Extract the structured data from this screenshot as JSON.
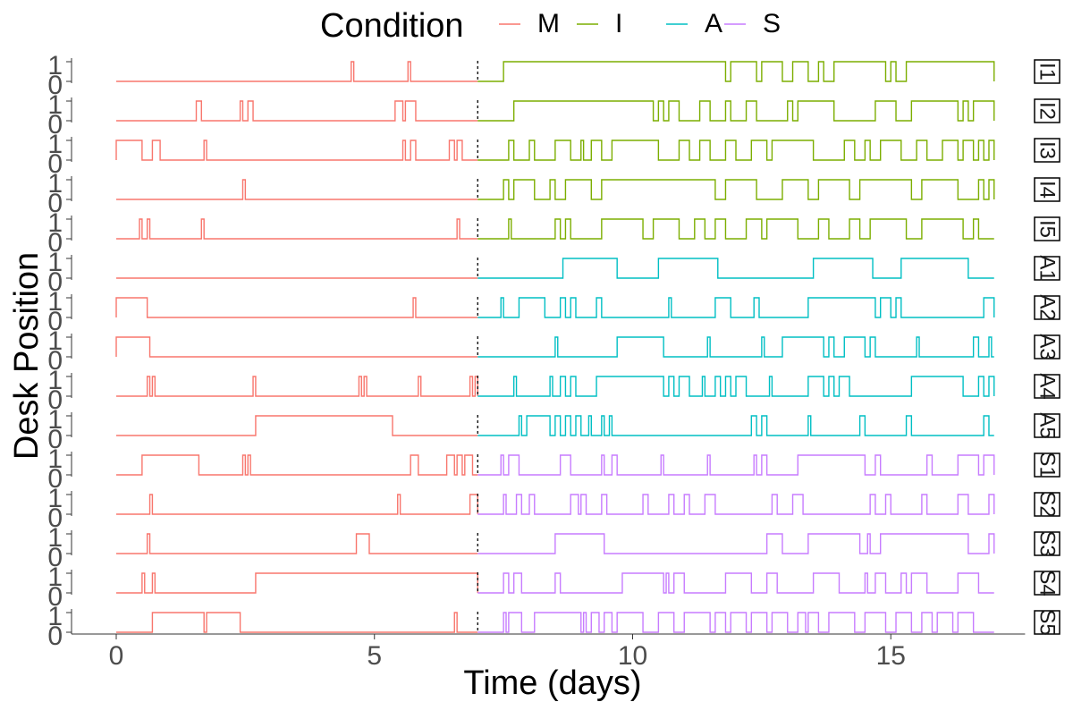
{
  "chart_data": {
    "type": "line",
    "subtype": "step",
    "xlabel": "Time (days)",
    "ylabel": "Desk Position",
    "xlim": [
      -0.4,
      17.6
    ],
    "x_ticks": [
      0,
      5,
      10,
      15
    ],
    "y_ticks": [
      0,
      1
    ],
    "condition_change_day": 7,
    "legend": {
      "title": "Condition",
      "position": "top",
      "items": [
        {
          "label": "M",
          "color": "#F8766D"
        },
        {
          "label": "I",
          "color": "#7CAE00"
        },
        {
          "label": "A",
          "color": "#00BFC4"
        },
        {
          "label": "S",
          "color": "#C77CFF"
        }
      ]
    },
    "colors": {
      "M": "#F8766D",
      "I": "#7CAE00",
      "A": "#00BFC4",
      "S": "#C77CFF"
    },
    "panels": [
      {
        "id": "I1",
        "cond": "I",
        "M": [
          [
            4.55,
            4.6
          ],
          [
            5.65,
            5.7
          ]
        ],
        "X": [
          [
            7.5,
            11.8
          ],
          [
            11.9,
            12.4
          ],
          [
            12.5,
            12.9
          ],
          [
            13.1,
            13.4
          ],
          [
            13.6,
            13.7
          ],
          [
            13.9,
            14.9
          ],
          [
            15.0,
            15.1
          ],
          [
            15.3,
            17.0
          ]
        ]
      },
      {
        "id": "I2",
        "cond": "I",
        "M": [
          [
            1.55,
            1.65
          ],
          [
            2.4,
            2.45
          ],
          [
            2.55,
            2.65
          ],
          [
            5.4,
            5.55
          ],
          [
            5.6,
            5.8
          ]
        ],
        "X": [
          [
            7.7,
            10.4
          ],
          [
            10.5,
            10.6
          ],
          [
            10.7,
            10.9
          ],
          [
            11.3,
            11.5
          ],
          [
            11.8,
            11.9
          ],
          [
            12.2,
            12.4
          ],
          [
            13.0,
            13.1
          ],
          [
            13.2,
            13.9
          ],
          [
            14.7,
            15.1
          ],
          [
            15.4,
            16.3
          ],
          [
            16.4,
            16.5
          ],
          [
            16.6,
            17.0
          ]
        ]
      },
      {
        "id": "I3",
        "cond": "I",
        "M": [
          [
            0,
            0.5
          ],
          [
            0.7,
            0.85
          ],
          [
            1.7,
            1.75
          ],
          [
            5.55,
            5.6
          ],
          [
            5.7,
            5.8
          ],
          [
            6.45,
            6.55
          ],
          [
            6.6,
            6.7
          ]
        ],
        "X": [
          [
            7.6,
            7.7
          ],
          [
            8.0,
            8.1
          ],
          [
            8.5,
            8.8
          ],
          [
            9.0,
            9.05
          ],
          [
            9.2,
            9.4
          ],
          [
            9.6,
            10.5
          ],
          [
            10.9,
            11.1
          ],
          [
            11.3,
            11.5
          ],
          [
            11.8,
            12.0
          ],
          [
            12.3,
            12.6
          ],
          [
            12.7,
            13.5
          ],
          [
            14.1,
            14.3
          ],
          [
            14.5,
            14.6
          ],
          [
            14.8,
            15.2
          ],
          [
            15.5,
            15.7
          ],
          [
            16.0,
            16.3
          ],
          [
            16.4,
            16.6
          ],
          [
            16.7,
            16.8
          ],
          [
            16.9,
            17.0
          ]
        ]
      },
      {
        "id": "I4",
        "cond": "I",
        "M": [
          [
            2.45,
            2.5
          ]
        ],
        "X": [
          [
            7.5,
            7.6
          ],
          [
            7.7,
            8.1
          ],
          [
            8.4,
            8.5
          ],
          [
            8.7,
            9.2
          ],
          [
            9.4,
            11.6
          ],
          [
            11.8,
            12.4
          ],
          [
            12.9,
            13.4
          ],
          [
            13.6,
            14.2
          ],
          [
            14.4,
            15.4
          ],
          [
            15.6,
            16.3
          ],
          [
            16.7,
            16.8
          ],
          [
            16.9,
            17.0
          ]
        ]
      },
      {
        "id": "I5",
        "cond": "I",
        "M": [
          [
            0.45,
            0.5
          ],
          [
            0.6,
            0.65
          ],
          [
            1.65,
            1.7
          ],
          [
            6.6,
            6.65
          ]
        ],
        "X": [
          [
            7.6,
            7.65
          ],
          [
            8.5,
            8.6
          ],
          [
            8.7,
            8.8
          ],
          [
            9.4,
            10.2
          ],
          [
            10.4,
            10.9
          ],
          [
            11.2,
            11.4
          ],
          [
            11.6,
            11.8
          ],
          [
            12.2,
            12.5
          ],
          [
            12.6,
            13.2
          ],
          [
            13.6,
            13.8
          ],
          [
            14.2,
            14.4
          ],
          [
            14.6,
            15.3
          ],
          [
            15.6,
            16.4
          ],
          [
            16.6,
            16.7
          ]
        ]
      },
      {
        "id": "A1",
        "cond": "A",
        "M": [],
        "X": [
          [
            8.65,
            9.7
          ],
          [
            10.5,
            11.65
          ],
          [
            13.5,
            14.65
          ],
          [
            15.2,
            16.5
          ]
        ]
      },
      {
        "id": "A2",
        "cond": "A",
        "M": [
          [
            0,
            0.6
          ],
          [
            5.75,
            5.8
          ]
        ],
        "X": [
          [
            7.45,
            7.5
          ],
          [
            7.8,
            8.3
          ],
          [
            8.6,
            8.7
          ],
          [
            8.8,
            8.9
          ],
          [
            9.3,
            9.4
          ],
          [
            10.7,
            10.75
          ],
          [
            11.6,
            11.9
          ],
          [
            12.35,
            12.45
          ],
          [
            13.4,
            14.7
          ],
          [
            14.8,
            15.0
          ],
          [
            15.1,
            15.2
          ],
          [
            16.8,
            17.0
          ]
        ]
      },
      {
        "id": "A3",
        "cond": "A",
        "M": [
          [
            0,
            0.65
          ]
        ],
        "X": [
          [
            8.5,
            8.55
          ],
          [
            9.7,
            10.6
          ],
          [
            11.45,
            11.5
          ],
          [
            12.5,
            12.55
          ],
          [
            12.9,
            13.7
          ],
          [
            13.8,
            13.9
          ],
          [
            14.1,
            14.5
          ],
          [
            14.6,
            14.7
          ],
          [
            15.5,
            15.55
          ],
          [
            16.6,
            16.7
          ],
          [
            16.9,
            16.95
          ]
        ]
      },
      {
        "id": "A4",
        "cond": "A",
        "M": [
          [
            0.6,
            0.65
          ],
          [
            0.7,
            0.75
          ],
          [
            2.65,
            2.7
          ],
          [
            4.7,
            4.75
          ],
          [
            4.8,
            4.85
          ],
          [
            5.85,
            5.9
          ],
          [
            6.85,
            6.9
          ],
          [
            6.95,
            7.0
          ]
        ],
        "X": [
          [
            7.7,
            7.75
          ],
          [
            8.4,
            8.45
          ],
          [
            8.6,
            8.7
          ],
          [
            8.8,
            8.9
          ],
          [
            9.3,
            10.6
          ],
          [
            10.7,
            10.8
          ],
          [
            10.9,
            11.1
          ],
          [
            11.35,
            11.4
          ],
          [
            11.6,
            11.7
          ],
          [
            11.8,
            11.9
          ],
          [
            12.0,
            12.2
          ],
          [
            12.65,
            12.7
          ],
          [
            13.4,
            13.7
          ],
          [
            13.8,
            13.9
          ],
          [
            14.0,
            14.2
          ],
          [
            15.4,
            16.4
          ],
          [
            16.7,
            16.8
          ],
          [
            16.9,
            17.0
          ]
        ]
      },
      {
        "id": "A5",
        "cond": "A",
        "M": [
          [
            2.7,
            5.35
          ]
        ],
        "X": [
          [
            7.8,
            7.85
          ],
          [
            7.95,
            8.4
          ],
          [
            8.5,
            8.6
          ],
          [
            8.7,
            8.8
          ],
          [
            8.9,
            9.0
          ],
          [
            9.15,
            9.2
          ],
          [
            9.4,
            9.45
          ],
          [
            9.55,
            9.6
          ],
          [
            12.3,
            12.4
          ],
          [
            12.5,
            12.6
          ],
          [
            13.4,
            13.45
          ],
          [
            14.4,
            14.5
          ],
          [
            15.3,
            15.4
          ],
          [
            16.8,
            16.9
          ]
        ]
      },
      {
        "id": "S1",
        "cond": "S",
        "M": [
          [
            0.5,
            1.6
          ],
          [
            2.45,
            2.5
          ],
          [
            2.55,
            2.6
          ],
          [
            5.7,
            5.85
          ],
          [
            6.4,
            6.55
          ],
          [
            6.6,
            6.7
          ],
          [
            6.75,
            6.9
          ]
        ],
        "X": [
          [
            7.45,
            7.5
          ],
          [
            7.6,
            7.8
          ],
          [
            8.6,
            8.8
          ],
          [
            9.4,
            9.45
          ],
          [
            9.6,
            9.7
          ],
          [
            10.55,
            10.6
          ],
          [
            11.45,
            11.5
          ],
          [
            12.35,
            12.4
          ],
          [
            12.5,
            12.6
          ],
          [
            13.2,
            14.5
          ],
          [
            14.7,
            14.8
          ],
          [
            15.7,
            15.8
          ],
          [
            16.3,
            16.7
          ],
          [
            16.8,
            17.0
          ]
        ]
      },
      {
        "id": "S2",
        "cond": "S",
        "M": [
          [
            0.65,
            0.7
          ],
          [
            5.45,
            5.5
          ],
          [
            6.85,
            7.0
          ]
        ],
        "X": [
          [
            7.5,
            7.55
          ],
          [
            7.75,
            7.85
          ],
          [
            8.0,
            8.1
          ],
          [
            8.8,
            8.95
          ],
          [
            9.0,
            9.1
          ],
          [
            9.4,
            9.5
          ],
          [
            10.2,
            10.3
          ],
          [
            10.7,
            10.8
          ],
          [
            11.0,
            11.1
          ],
          [
            11.4,
            11.6
          ],
          [
            12.7,
            12.8
          ],
          [
            13.1,
            13.3
          ],
          [
            14.6,
            14.7
          ],
          [
            14.9,
            15.0
          ],
          [
            15.6,
            15.7
          ],
          [
            16.3,
            16.5
          ],
          [
            16.9,
            17.0
          ]
        ]
      },
      {
        "id": "S3",
        "cond": "S",
        "M": [
          [
            0.6,
            0.65
          ],
          [
            4.65,
            4.9
          ]
        ],
        "X": [
          [
            8.5,
            9.45
          ],
          [
            12.6,
            12.9
          ],
          [
            13.4,
            14.4
          ],
          [
            14.55,
            14.6
          ],
          [
            14.8,
            16.5
          ],
          [
            16.9,
            17.0
          ]
        ]
      },
      {
        "id": "S4",
        "cond": "S",
        "M": [
          [
            0.5,
            0.55
          ],
          [
            0.7,
            0.75
          ],
          [
            2.7,
            7.0
          ]
        ],
        "X": [
          [
            7.5,
            7.6
          ],
          [
            7.7,
            7.85
          ],
          [
            8.5,
            8.6
          ],
          [
            9.8,
            10.6
          ],
          [
            10.65,
            10.7
          ],
          [
            10.8,
            11.0
          ],
          [
            11.8,
            12.3
          ],
          [
            12.6,
            12.8
          ],
          [
            13.5,
            14.0
          ],
          [
            14.5,
            14.55
          ],
          [
            14.7,
            14.9
          ],
          [
            15.2,
            15.3
          ],
          [
            15.4,
            15.7
          ],
          [
            16.3,
            16.7
          ]
        ]
      },
      {
        "id": "S5",
        "cond": "S",
        "M": [
          [
            0.7,
            1.7
          ],
          [
            1.75,
            2.4
          ],
          [
            6.55,
            6.6
          ]
        ],
        "X": [
          [
            7.5,
            7.55
          ],
          [
            7.6,
            7.85
          ],
          [
            8.1,
            9.0
          ],
          [
            9.05,
            9.1
          ],
          [
            9.2,
            9.35
          ],
          [
            9.45,
            9.6
          ],
          [
            9.7,
            10.2
          ],
          [
            10.5,
            10.8
          ],
          [
            11.0,
            11.5
          ],
          [
            11.6,
            11.8
          ],
          [
            11.9,
            12.2
          ],
          [
            12.3,
            12.6
          ],
          [
            12.7,
            13.0
          ],
          [
            13.2,
            13.35
          ],
          [
            13.4,
            13.6
          ],
          [
            13.8,
            14.3
          ],
          [
            14.5,
            14.9
          ],
          [
            15.1,
            15.4
          ],
          [
            15.6,
            15.8
          ],
          [
            15.9,
            16.2
          ],
          [
            16.3,
            16.6
          ]
        ]
      }
    ]
  }
}
